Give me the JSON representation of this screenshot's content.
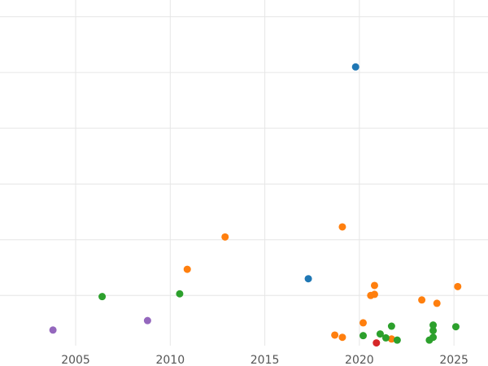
{
  "chart_data": {
    "type": "scatter",
    "title": "",
    "xlabel": "",
    "ylabel": "",
    "x_ticks": [
      "2005",
      "2010",
      "2015",
      "2020",
      "2025"
    ],
    "xlim": [
      2001,
      2026.8
    ],
    "ylim": [
      0,
      6.2
    ],
    "y_grid": [
      0.9,
      1.9,
      2.9,
      3.9,
      4.9,
      5.9
    ],
    "grid": true,
    "legend": "none",
    "colors": {
      "blue": "#1f77b4",
      "orange": "#ff7f0e",
      "green": "#2ca02c",
      "red": "#d62728",
      "purple": "#9467bd"
    },
    "series": [
      {
        "color": "#1f77b4",
        "points": [
          [
            2019.8,
            5.0
          ],
          [
            2017.3,
            1.2
          ]
        ]
      },
      {
        "color": "#ff7f0e",
        "points": [
          [
            2012.9,
            1.95
          ],
          [
            2010.9,
            1.37
          ],
          [
            2019.1,
            2.13
          ],
          [
            2020.8,
            1.08
          ],
          [
            2020.6,
            0.9
          ],
          [
            2020.8,
            0.92
          ],
          [
            2020.2,
            0.41
          ],
          [
            2018.7,
            0.19
          ],
          [
            2019.1,
            0.15
          ],
          [
            2021.7,
            0.12
          ],
          [
            2023.3,
            0.82
          ],
          [
            2024.1,
            0.76
          ],
          [
            2025.2,
            1.06
          ]
        ]
      },
      {
        "color": "#2ca02c",
        "points": [
          [
            2006.4,
            0.88
          ],
          [
            2010.5,
            0.93
          ],
          [
            2020.2,
            0.18
          ],
          [
            2021.1,
            0.21
          ],
          [
            2021.4,
            0.14
          ],
          [
            2021.7,
            0.35
          ],
          [
            2022.0,
            0.1
          ],
          [
            2023.7,
            0.1
          ],
          [
            2023.9,
            0.15
          ],
          [
            2023.9,
            0.27
          ],
          [
            2023.9,
            0.37
          ],
          [
            2025.1,
            0.34
          ]
        ]
      },
      {
        "color": "#d62728",
        "points": [
          [
            2020.9,
            0.05
          ]
        ]
      },
      {
        "color": "#9467bd",
        "points": [
          [
            2003.8,
            0.28
          ],
          [
            2008.8,
            0.45
          ]
        ]
      }
    ]
  }
}
